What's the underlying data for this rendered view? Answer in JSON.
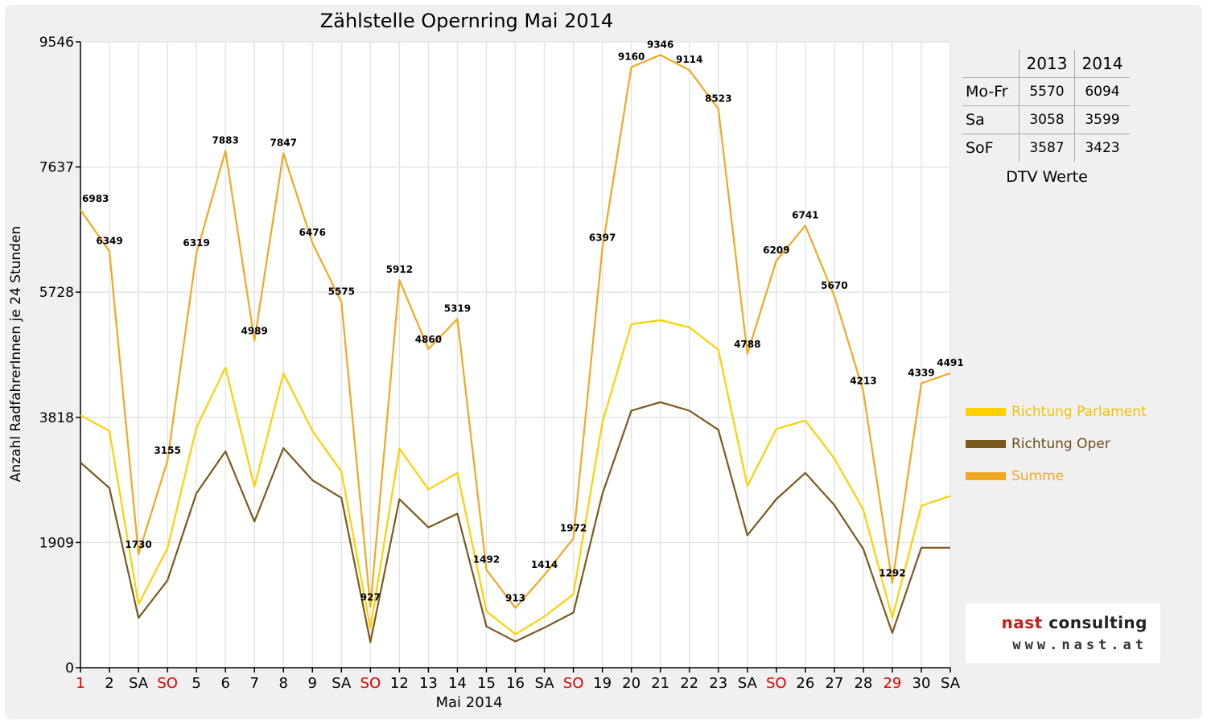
{
  "chart_data": {
    "type": "line",
    "title": "Zählstelle Opernring Mai 2014",
    "xlabel": "Mai 2014",
    "ylabel": "Anzahl RadfahrerInnen je 24 Stunden",
    "categories": [
      "1",
      "2",
      "SA",
      "SO",
      "5",
      "6",
      "7",
      "8",
      "9",
      "SA",
      "SO",
      "12",
      "13",
      "14",
      "15",
      "16",
      "SA",
      "SO",
      "19",
      "20",
      "21",
      "22",
      "23",
      "SA",
      "SO",
      "26",
      "27",
      "28",
      "29",
      "30",
      "SA"
    ],
    "highlighted_categories": [
      0,
      3,
      10,
      17,
      24,
      28
    ],
    "ylim": [
      0,
      9546
    ],
    "yticks": [
      "0",
      "1909",
      "3818",
      "5728",
      "7637",
      "9546"
    ],
    "grid": true,
    "legend_position": "right",
    "series": [
      {
        "name": "Richtung Parlament",
        "color": "#FFD000",
        "values": [
          3850,
          3610,
          970,
          1820,
          3660,
          4580,
          2760,
          4490,
          3610,
          2990,
          600,
          3340,
          2720,
          2970,
          860,
          510,
          780,
          1120,
          3740,
          5240,
          5300,
          5190,
          4850,
          2770,
          3640,
          3770,
          3190,
          2410,
          760,
          2470,
          2620
        ]
      },
      {
        "name": "Richtung Oper",
        "color": "#7A5A1E",
        "values": [
          3130,
          2740,
          760,
          1330,
          2660,
          3300,
          2230,
          3350,
          2860,
          2590,
          390,
          2570,
          2140,
          2350,
          630,
          400,
          610,
          840,
          2650,
          3920,
          4050,
          3920,
          3630,
          2020,
          2570,
          2970,
          2480,
          1810,
          530,
          1830,
          1830
        ]
      },
      {
        "name": "Summe",
        "color": "#F0A820",
        "values": [
          6983,
          6349,
          1730,
          3155,
          6319,
          7883,
          4989,
          7847,
          6476,
          5575,
          927,
          5912,
          4860,
          5319,
          1492,
          913,
          1414,
          1972,
          6397,
          9160,
          9346,
          9114,
          8523,
          4788,
          6209,
          6741,
          5670,
          4213,
          1292,
          4339,
          4491
        ],
        "value_labels": [
          "6983",
          "6349",
          "1730",
          "3155",
          "6319",
          "7883",
          "4989",
          "7847",
          "6476",
          "5575",
          "927",
          "5912",
          "4860",
          "5319",
          "1492",
          "913",
          "1414",
          "1972",
          "6397",
          "9160",
          "9346",
          "9114",
          "8523",
          "4788",
          "6209",
          "6741",
          "5670",
          "4213",
          "1292",
          "4339",
          "4491"
        ]
      }
    ]
  },
  "dtv_table": {
    "caption": "DTV Werte",
    "years": [
      "2013",
      "2014"
    ],
    "rows": [
      {
        "label": "Mo-Fr",
        "v2013": "5570",
        "v2014": "6094"
      },
      {
        "label": "Sa",
        "v2013": "3058",
        "v2014": "3599"
      },
      {
        "label": "SoF",
        "v2013": "3587",
        "v2014": "3423"
      }
    ]
  },
  "logo": {
    "line1_a": "nast",
    "line1_b": "consulting",
    "line2": "www.nast.at"
  },
  "colors": {
    "holiday_red": "#E00000",
    "grid": "#ffffff",
    "background": "#f0f0f0",
    "logo_red": "#C81E1E"
  }
}
